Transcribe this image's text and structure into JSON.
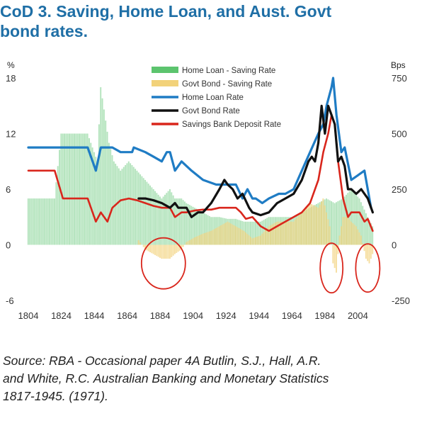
{
  "title": {
    "line1": "CoD 3. Saving, Home Loan, and Aust. Govt",
    "line2": "bond rates."
  },
  "source": {
    "line1": "Source:  RBA - Occasional paper 4A Butlin, S.J., Hall, A.R.",
    "line2": "and White, R.C. Australian Banking and Monetary Statistics",
    "line3": "1817-1945. (1971)."
  },
  "colors": {
    "home_spread": "#5cc46e",
    "govt_spread": "#f2d27a",
    "home_loan": "#1f7cc4",
    "govt_bond": "#111111",
    "deposit": "#d9261c",
    "title": "#1f6fa6",
    "circle": "#d9261c"
  },
  "chart_data": {
    "type": "line",
    "title": "",
    "left_unit": "%",
    "right_unit": "Bps",
    "ylim": [
      -6,
      18
    ],
    "y2lim": [
      -250,
      750
    ],
    "xlim": [
      1804,
      2018
    ],
    "y_ticks": [
      "18",
      "12",
      "6",
      "0",
      "-6"
    ],
    "y2_ticks": [
      "750",
      "500",
      "250",
      "0",
      "-250"
    ],
    "x_ticks": [
      "1804",
      "1824",
      "1844",
      "1864",
      "1884",
      "1904",
      "1924",
      "1944",
      "1964",
      "1984",
      "2004"
    ],
    "grid": false,
    "legend_position": "top-center",
    "legend": [
      {
        "label": "Home Loan - Saving Rate",
        "kind": "bar"
      },
      {
        "label": "Govt Bond - Saving Rate",
        "kind": "bar"
      },
      {
        "label": "Home Loan Rate",
        "kind": "line"
      },
      {
        "label": "Govt Bond Rate",
        "kind": "line"
      },
      {
        "label": "Savings Bank Deposit Rate",
        "kind": "line"
      }
    ],
    "series": [
      {
        "name": "Home Loan Rate",
        "axis": "left",
        "x": [
          1804,
          1810,
          1820,
          1830,
          1840,
          1845,
          1848,
          1855,
          1860,
          1867,
          1868,
          1875,
          1880,
          1885,
          1888,
          1890,
          1893,
          1897,
          1903,
          1910,
          1918,
          1922,
          1925,
          1930,
          1934,
          1937,
          1940,
          1942,
          1946,
          1950,
          1956,
          1960,
          1965,
          1970,
          1975,
          1980,
          1983,
          1985,
          1988,
          1989,
          1991,
          1994,
          1996,
          2000,
          2004,
          2008,
          2012
        ],
        "y": [
          10.5,
          10.5,
          10.5,
          10.5,
          10.5,
          8,
          10.5,
          10.5,
          10,
          10,
          10.5,
          10,
          9.5,
          9,
          10,
          10,
          8,
          9,
          8,
          7,
          6.5,
          6.5,
          6.5,
          6.5,
          5,
          6,
          5,
          5,
          4.5,
          5,
          5.5,
          5.5,
          6,
          8,
          10,
          12,
          13,
          15,
          17,
          18,
          14,
          10,
          10.5,
          7,
          7.5,
          8,
          4
        ]
      },
      {
        "name": "Govt Bond Rate",
        "axis": "left",
        "x": [
          1871,
          1875,
          1880,
          1885,
          1890,
          1893,
          1895,
          1900,
          1903,
          1907,
          1910,
          1915,
          1920,
          1923,
          1925,
          1928,
          1931,
          1934,
          1938,
          1940,
          1945,
          1950,
          1955,
          1960,
          1965,
          1970,
          1974,
          1976,
          1978,
          1980,
          1982,
          1984,
          1986,
          1988,
          1990,
          1992,
          1994,
          1996,
          1998,
          2000,
          2003,
          2006,
          2008,
          2010,
          2013
        ],
        "y": [
          5,
          5,
          4.8,
          4.5,
          4,
          4.5,
          4,
          4,
          3,
          3.5,
          3.5,
          4.5,
          6,
          7,
          6.5,
          6,
          5,
          5.5,
          4,
          3.5,
          3.2,
          3.5,
          4.5,
          5,
          5.5,
          7,
          9,
          9.5,
          9,
          11,
          15,
          12,
          15,
          14,
          13,
          9,
          9.5,
          8.5,
          6,
          6,
          5.5,
          6,
          5.5,
          5,
          3.5
        ]
      },
      {
        "name": "Savings Bank Deposit Rate",
        "axis": "left",
        "x": [
          1804,
          1820,
          1825,
          1830,
          1840,
          1845,
          1848,
          1852,
          1855,
          1860,
          1865,
          1870,
          1875,
          1880,
          1885,
          1890,
          1893,
          1897,
          1900,
          1905,
          1910,
          1915,
          1920,
          1925,
          1930,
          1933,
          1936,
          1940,
          1945,
          1950,
          1955,
          1960,
          1965,
          1970,
          1975,
          1980,
          1983,
          1986,
          1988,
          1990,
          1992,
          1995,
          1998,
          2000,
          2005,
          2008,
          2010,
          2013
        ],
        "y": [
          8,
          8,
          5,
          5,
          5,
          2.5,
          3.5,
          2.5,
          4,
          4.8,
          5,
          4.8,
          4.5,
          4.2,
          4,
          4,
          3,
          3.5,
          3.5,
          3.7,
          3.8,
          3.8,
          4,
          4,
          4,
          3.5,
          2.8,
          3,
          2,
          1.5,
          2,
          2.5,
          3,
          3.5,
          4.5,
          7,
          10,
          12,
          14,
          13,
          9,
          5,
          3,
          3.5,
          3.5,
          2.5,
          2.8,
          1.5
        ]
      },
      {
        "name": "Home Loan - Saving Rate",
        "axis": "left",
        "type": "bar",
        "x": [
          1804,
          1820,
          1824,
          1830,
          1840,
          1846,
          1848,
          1853,
          1856,
          1860,
          1865,
          1870,
          1875,
          1880,
          1885,
          1890,
          1893,
          1897,
          1900,
          1905,
          1910,
          1915,
          1920,
          1925,
          1930,
          1935,
          1940,
          1945,
          1950,
          1955,
          1960,
          1965,
          1970,
          1975,
          1980,
          1985,
          1990,
          1995,
          2000,
          2005,
          2010,
          2013
        ],
        "y": [
          5,
          5,
          12,
          12,
          12,
          9,
          17,
          11,
          9,
          8,
          9,
          8,
          7,
          6,
          5,
          6,
          5,
          5,
          4.5,
          4,
          3.5,
          3,
          3,
          2.8,
          2.8,
          2.5,
          2.5,
          2.5,
          3,
          3,
          3,
          3,
          3.5,
          4,
          4.5,
          5,
          4.5,
          5,
          6,
          5,
          3,
          2
        ]
      },
      {
        "name": "Govt Bond - Saving Rate",
        "axis": "left",
        "type": "bar",
        "x": [
          1871,
          1875,
          1880,
          1885,
          1890,
          1893,
          1897,
          1900,
          1905,
          1910,
          1915,
          1920,
          1925,
          1930,
          1935,
          1940,
          1945,
          1950,
          1955,
          1960,
          1965,
          1970,
          1975,
          1980,
          1983,
          1985,
          1987,
          1989,
          1991,
          1993,
          1995,
          1998,
          2000,
          2003,
          2006,
          2009,
          2011,
          2013
        ],
        "y": [
          0.5,
          -0.5,
          -1,
          -1.5,
          -1.5,
          -1,
          -0.5,
          0.3,
          0.8,
          1.2,
          1.5,
          2,
          2.5,
          2,
          1.5,
          0.7,
          1,
          2,
          2.5,
          2.5,
          2.5,
          3.5,
          4.5,
          4,
          5,
          3.5,
          2,
          -2,
          -3,
          1,
          3,
          3,
          2.5,
          2,
          1,
          -1.5,
          -2,
          -1
        ]
      }
    ]
  }
}
